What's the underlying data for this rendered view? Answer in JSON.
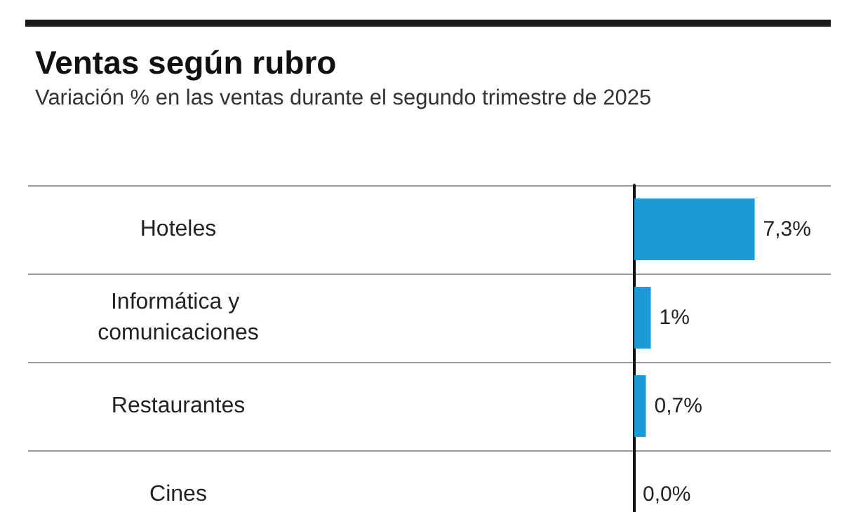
{
  "chart_data": {
    "type": "bar",
    "orientation": "horizontal",
    "title": "Ventas según rubro",
    "subtitle": "Variación % en las ventas durante el segundo trimestre de 2025",
    "categories": [
      "Hoteles",
      "Informática y comunicaciones",
      "Restaurantes",
      "Cines"
    ],
    "values": [
      7.3,
      1,
      0.7,
      0.0
    ],
    "value_labels": [
      "7,3%",
      "1%",
      "0,7%",
      "0,0%"
    ],
    "color": "#1a9ad6",
    "grid": "y"
  }
}
